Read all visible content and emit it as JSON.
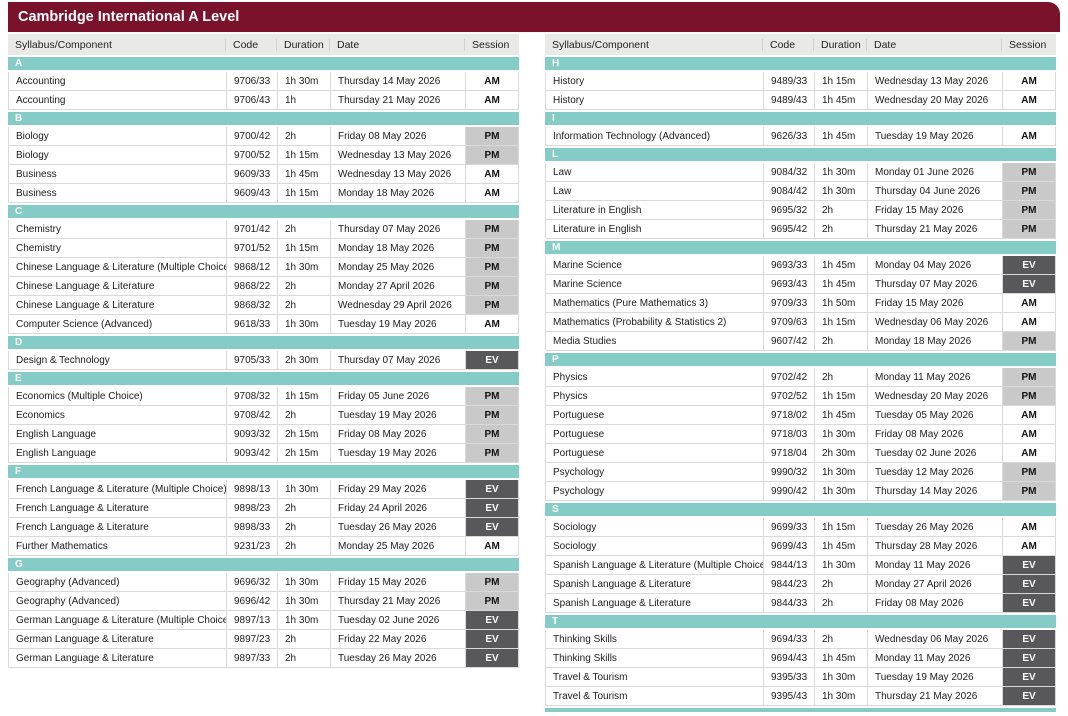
{
  "title": "Cambridge International A Level",
  "columns": [
    "Syllabus/Component",
    "Code",
    "Duration",
    "Date",
    "Session"
  ],
  "colors": {
    "header_maroon": "#7a122c",
    "section_teal": "#84ccc5",
    "column_header_gray": "#e9e9e7",
    "session_pm_gray": "#c9c9c9",
    "session_ev_dark": "#58585a",
    "session_am_white": "#ffffff"
  },
  "tables": [
    {
      "sections": [
        {
          "letter": "A",
          "rows": [
            [
              "Accounting",
              "9706/33",
              "1h 30m",
              "Thursday 14 May 2026",
              "AM"
            ],
            [
              "Accounting",
              "9706/43",
              "1h",
              "Thursday 21 May 2026",
              "AM"
            ]
          ]
        },
        {
          "letter": "B",
          "rows": [
            [
              "Biology",
              "9700/42",
              "2h",
              "Friday 08 May 2026",
              "PM"
            ],
            [
              "Biology",
              "9700/52",
              "1h 15m",
              "Wednesday 13 May 2026",
              "PM"
            ],
            [
              "Business",
              "9609/33",
              "1h 45m",
              "Wednesday 13 May 2026",
              "AM"
            ],
            [
              "Business",
              "9609/43",
              "1h 15m",
              "Monday 18 May 2026",
              "AM"
            ]
          ]
        },
        {
          "letter": "C",
          "rows": [
            [
              "Chemistry",
              "9701/42",
              "2h",
              "Thursday 07 May 2026",
              "PM"
            ],
            [
              "Chemistry",
              "9701/52",
              "1h 15m",
              "Monday 18 May 2026",
              "PM"
            ],
            [
              "Chinese Language & Literature (Multiple Choice)",
              "9868/12",
              "1h 30m",
              "Monday 25 May 2026",
              "PM"
            ],
            [
              "Chinese Language & Literature",
              "9868/22",
              "2h",
              "Monday 27 April 2026",
              "PM"
            ],
            [
              "Chinese Language & Literature",
              "9868/32",
              "2h",
              "Wednesday 29 April 2026",
              "PM"
            ],
            [
              "Computer Science (Advanced)",
              "9618/33",
              "1h 30m",
              "Tuesday 19 May 2026",
              "AM"
            ]
          ]
        },
        {
          "letter": "D",
          "rows": [
            [
              "Design & Technology",
              "9705/33",
              "2h 30m",
              "Thursday 07 May 2026",
              "EV"
            ]
          ]
        },
        {
          "letter": "E",
          "rows": [
            [
              "Economics (Multiple Choice)",
              "9708/32",
              "1h 15m",
              "Friday 05 June 2026",
              "PM"
            ],
            [
              "Economics",
              "9708/42",
              "2h",
              "Tuesday 19 May 2026",
              "PM"
            ],
            [
              "English Language",
              "9093/32",
              "2h 15m",
              "Friday 08 May 2026",
              "PM"
            ],
            [
              "English Language",
              "9093/42",
              "2h 15m",
              "Tuesday 19 May 2026",
              "PM"
            ]
          ]
        },
        {
          "letter": "F",
          "rows": [
            [
              "French Language & Literature (Multiple Choice)",
              "9898/13",
              "1h 30m",
              "Friday 29 May 2026",
              "EV"
            ],
            [
              "French Language & Literature",
              "9898/23",
              "2h",
              "Friday 24 April 2026",
              "EV"
            ],
            [
              "French Language & Literature",
              "9898/33",
              "2h",
              "Tuesday 26 May 2026",
              "EV"
            ],
            [
              "Further Mathematics",
              "9231/23",
              "2h",
              "Monday 25 May 2026",
              "AM"
            ]
          ]
        },
        {
          "letter": "G",
          "rows": [
            [
              "Geography (Advanced)",
              "9696/32",
              "1h 30m",
              "Friday 15 May 2026",
              "PM"
            ],
            [
              "Geography (Advanced)",
              "9696/42",
              "1h 30m",
              "Thursday 21 May 2026",
              "PM"
            ],
            [
              "German Language & Literature (Multiple Choice)",
              "9897/13",
              "1h 30m",
              "Tuesday 02 June 2026",
              "EV"
            ],
            [
              "German Language & Literature",
              "9897/23",
              "2h",
              "Friday 22 May 2026",
              "EV"
            ],
            [
              "German Language & Literature",
              "9897/33",
              "2h",
              "Tuesday 26 May 2026",
              "EV"
            ]
          ]
        }
      ]
    },
    {
      "bottom_cutoff_bar": true,
      "sections": [
        {
          "letter": "H",
          "rows": [
            [
              "History",
              "9489/33",
              "1h 15m",
              "Wednesday 13 May 2026",
              "AM"
            ],
            [
              "History",
              "9489/43",
              "1h 45m",
              "Wednesday 20 May 2026",
              "AM"
            ]
          ]
        },
        {
          "letter": "I",
          "rows": [
            [
              "Information Technology (Advanced)",
              "9626/33",
              "1h 45m",
              "Tuesday 19 May 2026",
              "AM"
            ]
          ]
        },
        {
          "letter": "L",
          "rows": [
            [
              "Law",
              "9084/32",
              "1h 30m",
              "Monday 01 June 2026",
              "PM"
            ],
            [
              "Law",
              "9084/42",
              "1h 30m",
              "Thursday 04 June 2026",
              "PM"
            ],
            [
              "Literature in English",
              "9695/32",
              "2h",
              "Friday 15 May 2026",
              "PM"
            ],
            [
              "Literature in English",
              "9695/42",
              "2h",
              "Thursday 21 May 2026",
              "PM"
            ]
          ]
        },
        {
          "letter": "M",
          "rows": [
            [
              "Marine Science",
              "9693/33",
              "1h 45m",
              "Monday 04 May 2026",
              "EV"
            ],
            [
              "Marine Science",
              "9693/43",
              "1h 45m",
              "Thursday 07 May 2026",
              "EV"
            ],
            [
              "Mathematics (Pure Mathematics 3)",
              "9709/33",
              "1h 50m",
              "Friday 15 May 2026",
              "AM"
            ],
            [
              "Mathematics (Probability & Statistics 2)",
              "9709/63",
              "1h 15m",
              "Wednesday 06 May 2026",
              "AM"
            ],
            [
              "Media Studies",
              "9607/42",
              "2h",
              "Monday 18 May 2026",
              "PM"
            ]
          ]
        },
        {
          "letter": "P",
          "rows": [
            [
              "Physics",
              "9702/42",
              "2h",
              "Monday 11 May 2026",
              "PM"
            ],
            [
              "Physics",
              "9702/52",
              "1h 15m",
              "Wednesday 20 May 2026",
              "PM"
            ],
            [
              "Portuguese",
              "9718/02",
              "1h 45m",
              "Tuesday 05 May 2026",
              "AM"
            ],
            [
              "Portuguese",
              "9718/03",
              "1h 30m",
              "Friday 08 May 2026",
              "AM"
            ],
            [
              "Portuguese",
              "9718/04",
              "2h 30m",
              "Tuesday 02 June 2026",
              "AM"
            ],
            [
              "Psychology",
              "9990/32",
              "1h 30m",
              "Tuesday 12 May 2026",
              "PM"
            ],
            [
              "Psychology",
              "9990/42",
              "1h 30m",
              "Thursday 14 May 2026",
              "PM"
            ]
          ]
        },
        {
          "letter": "S",
          "rows": [
            [
              "Sociology",
              "9699/33",
              "1h 15m",
              "Tuesday 26 May 2026",
              "AM"
            ],
            [
              "Sociology",
              "9699/43",
              "1h 45m",
              "Thursday 28 May 2026",
              "AM"
            ],
            [
              "Spanish Language & Literature (Multiple Choice)",
              "9844/13",
              "1h 30m",
              "Monday 11 May 2026",
              "EV"
            ],
            [
              "Spanish Language & Literature",
              "9844/23",
              "2h",
              "Monday 27 April 2026",
              "EV"
            ],
            [
              "Spanish Language & Literature",
              "9844/33",
              "2h",
              "Friday 08 May 2026",
              "EV"
            ]
          ]
        },
        {
          "letter": "T",
          "rows": [
            [
              "Thinking Skills",
              "9694/33",
              "2h",
              "Wednesday 06 May 2026",
              "EV"
            ],
            [
              "Thinking Skills",
              "9694/43",
              "1h 45m",
              "Monday 11 May 2026",
              "EV"
            ],
            [
              "Travel & Tourism",
              "9395/33",
              "1h 30m",
              "Tuesday 19 May 2026",
              "EV"
            ],
            [
              "Travel & Tourism",
              "9395/43",
              "1h 30m",
              "Thursday 21 May 2026",
              "EV"
            ]
          ]
        }
      ]
    }
  ]
}
